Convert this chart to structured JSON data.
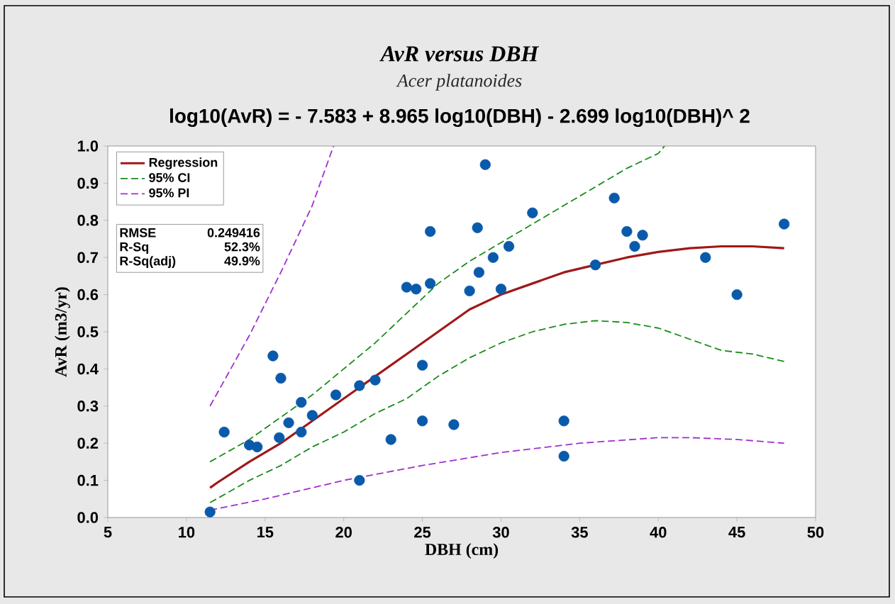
{
  "chart_data": {
    "type": "scatter",
    "title": "AvR versus DBH",
    "subtitle": "Acer platanoides",
    "xlabel": "DBH (cm)",
    "ylabel": "AvR (m3/yr)",
    "annotations": [
      "log10(AvR) = - 7.583 + 8.965 log10(DBH) - 2.699 log10(DBH)^ 2",
      "RMSE",
      "0.249416",
      "R-Sq",
      "52.3%",
      "R-Sq(adj)",
      "49.9%"
    ],
    "xlim": [
      5,
      50
    ],
    "xticks": [
      5,
      10,
      15,
      20,
      25,
      30,
      35,
      40,
      45,
      50
    ],
    "ylim": [
      0,
      1
    ],
    "yticks": [
      {
        "value": 0,
        "label": "0.0"
      },
      0.1,
      0.2,
      0.3,
      0.4,
      0.5,
      0.6,
      0.7,
      0.8,
      0.9,
      {
        "value": 1,
        "label": "1.0"
      }
    ],
    "legend": "top left",
    "series": [
      {
        "type": "scatter",
        "marker": "circle",
        "color": "#0a5aab",
        "x": [
          11.5,
          12.4,
          14.0,
          14.5,
          15.5,
          16.0,
          15.9,
          16.5,
          17.3,
          17.3,
          18.0,
          19.5,
          21.0,
          22.0,
          21.0,
          23.0,
          24.0,
          24.6,
          25.0,
          25.0,
          25.5,
          25.5,
          27.0,
          28.0,
          28.5,
          28.6,
          29.0,
          29.5,
          30.0,
          30.5,
          32.0,
          34.0,
          34.0,
          36.0,
          37.2,
          38.0,
          38.5,
          39.0,
          43.0,
          45.0,
          48.0
        ],
        "values": [
          0.015,
          0.23,
          0.195,
          0.19,
          0.435,
          0.375,
          0.215,
          0.255,
          0.31,
          0.23,
          0.275,
          0.33,
          0.355,
          0.37,
          0.1,
          0.21,
          0.62,
          0.615,
          0.41,
          0.26,
          0.77,
          0.63,
          0.25,
          0.61,
          0.78,
          0.66,
          0.95,
          0.7,
          0.615,
          0.73,
          0.82,
          0.26,
          0.165,
          0.68,
          0.86,
          0.77,
          0.73,
          0.76,
          0.7,
          0.6,
          0.79
        ]
      },
      {
        "type": "line",
        "name": "Regression",
        "line_style": "solid",
        "color": "#a01818",
        "x": [
          11.5,
          12,
          14,
          16,
          18,
          20,
          22,
          24,
          26,
          28,
          30,
          32,
          34,
          36,
          38,
          40,
          42,
          44,
          46,
          48
        ],
        "values": [
          0.08,
          0.095,
          0.15,
          0.2,
          0.26,
          0.32,
          0.38,
          0.44,
          0.5,
          0.56,
          0.6,
          0.63,
          0.66,
          0.68,
          0.7,
          0.715,
          0.725,
          0.73,
          0.73,
          0.725
        ]
      },
      {
        "type": "line",
        "name": "95% CI",
        "line_style": "dashed",
        "color": "#1a8c1a",
        "x": [
          11.5,
          14,
          16,
          18,
          20,
          22,
          24,
          26,
          28,
          30,
          32,
          34,
          36,
          38,
          40,
          40.4
        ],
        "values": [
          0.15,
          0.21,
          0.27,
          0.33,
          0.4,
          0.47,
          0.55,
          0.63,
          0.69,
          0.74,
          0.79,
          0.84,
          0.89,
          0.94,
          0.98,
          1.0
        ]
      },
      {
        "type": "line",
        "line_style": "dashed",
        "color": "#1a8c1a",
        "x": [
          11.5,
          14,
          16,
          18,
          20,
          22,
          24,
          26,
          28,
          30,
          32,
          34,
          36,
          38,
          40,
          42,
          44,
          46,
          48
        ],
        "values": [
          0.04,
          0.1,
          0.14,
          0.19,
          0.23,
          0.28,
          0.32,
          0.38,
          0.43,
          0.47,
          0.5,
          0.52,
          0.53,
          0.525,
          0.51,
          0.48,
          0.45,
          0.44,
          0.42
        ]
      },
      {
        "type": "line",
        "name": "95% PI",
        "line_style": "dashed",
        "color": "#a030d0",
        "x": [
          11.5,
          14,
          16,
          18,
          19.35
        ],
        "values": [
          0.3,
          0.49,
          0.66,
          0.84,
          1.0
        ]
      },
      {
        "type": "line",
        "line_style": "dashed",
        "color": "#a030d0",
        "x": [
          11.5,
          15,
          20,
          25,
          30,
          35,
          40,
          42,
          45,
          48
        ],
        "values": [
          0.02,
          0.05,
          0.1,
          0.14,
          0.175,
          0.2,
          0.215,
          0.215,
          0.21,
          0.2
        ]
      }
    ]
  }
}
